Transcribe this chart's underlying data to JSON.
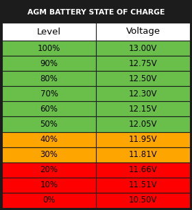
{
  "title": "AGM BATTERY STATE OF CHARGE",
  "title_bg": "#1c1c1c",
  "title_color": "#ffffff",
  "header": [
    "Level",
    "Voltage"
  ],
  "header_bg": "#ffffff",
  "header_color": "#000000",
  "rows": [
    {
      "level": "100%",
      "voltage": "13.00V",
      "color": "#6abf4b"
    },
    {
      "level": "90%",
      "voltage": "12.75V",
      "color": "#6abf4b"
    },
    {
      "level": "80%",
      "voltage": "12.50V",
      "color": "#6abf4b"
    },
    {
      "level": "70%",
      "voltage": "12.30V",
      "color": "#6abf4b"
    },
    {
      "level": "60%",
      "voltage": "12.15V",
      "color": "#6abf4b"
    },
    {
      "level": "50%",
      "voltage": "12.05V",
      "color": "#6abf4b"
    },
    {
      "level": "40%",
      "voltage": "11.95V",
      "color": "#ffa500"
    },
    {
      "level": "30%",
      "voltage": "11.81V",
      "color": "#ffa500"
    },
    {
      "level": "20%",
      "voltage": "11.66V",
      "color": "#ff0000"
    },
    {
      "level": "10%",
      "voltage": "11.51V",
      "color": "#ff0000"
    },
    {
      "level": "0%",
      "voltage": "10.50V",
      "color": "#ff0000"
    }
  ],
  "border_color": "#1c1c1c",
  "row_text_color": "#000000",
  "outer_border": 3,
  "figsize": [
    2.8,
    3.05
  ],
  "dpi": 100
}
